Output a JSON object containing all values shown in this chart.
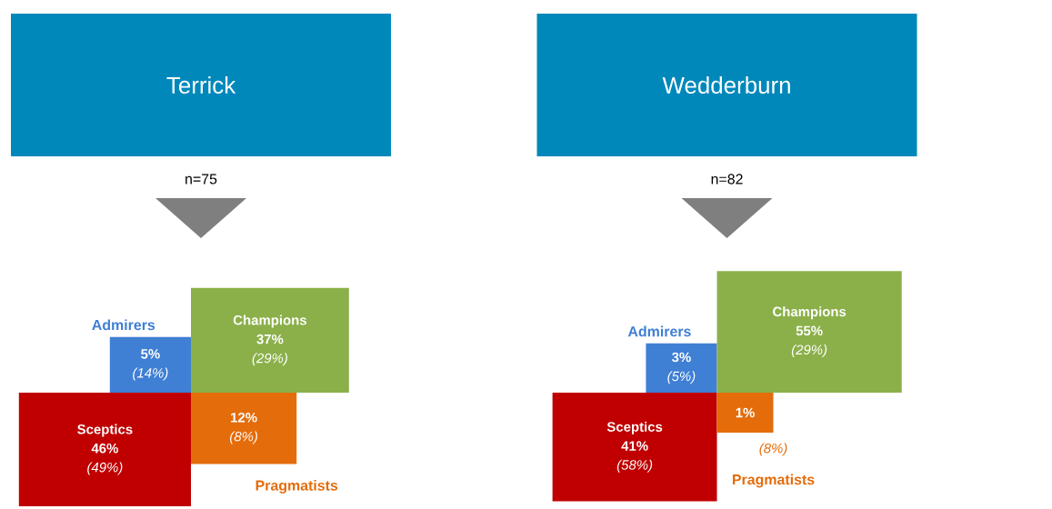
{
  "chart_data": [
    {
      "type": "other",
      "title": "Terrick",
      "annotations": [
        "n=75"
      ],
      "categories": [
        "Admirers",
        "Champions",
        "Sceptics",
        "Pragmatists"
      ],
      "series": [
        {
          "values": [
            5,
            37,
            46,
            12
          ],
          "colors": [
            "#3f7fd4",
            "#8bb04a",
            "#c00000",
            "#e46c0a"
          ],
          "value_labels": [
            "5%",
            "37%",
            "46%",
            "12%"
          ]
        },
        {
          "values": [
            14,
            29,
            49,
            8
          ],
          "value_labels": [
            "(14%)",
            "(29%)",
            "(49%)",
            "(8%)"
          ]
        }
      ]
    },
    {
      "type": "other",
      "title": "Wedderburn",
      "annotations": [
        "n=82"
      ],
      "categories": [
        "Admirers",
        "Champions",
        "Sceptics",
        "Pragmatists"
      ],
      "series": [
        {
          "values": [
            3,
            55,
            41,
            1
          ],
          "colors": [
            "#3f7fd4",
            "#8bb04a",
            "#c00000",
            "#e46c0a"
          ],
          "value_labels": [
            "3%",
            "55%",
            "41%",
            "1%"
          ]
        },
        {
          "values": [
            5,
            29,
            58,
            8
          ],
          "value_labels": [
            "(5%)",
            "(29%)",
            "(58%)",
            "(8%)"
          ]
        }
      ]
    }
  ]
}
